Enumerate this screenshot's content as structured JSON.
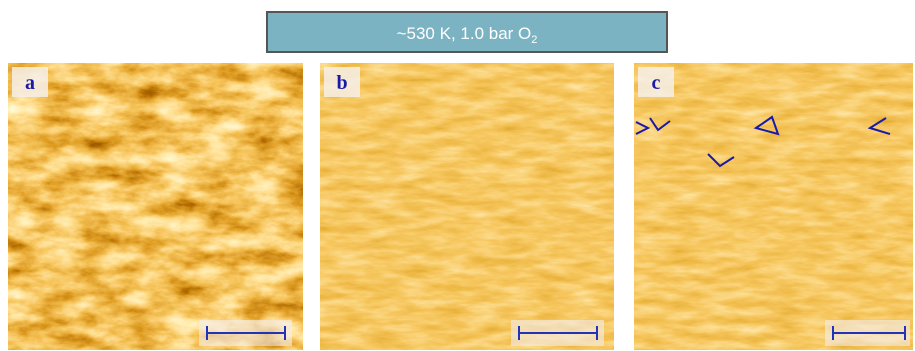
{
  "header": {
    "title": "~530 K, 1.0 bar O",
    "title_subscript": "2"
  },
  "panels": [
    {
      "label": "a"
    },
    {
      "label": "b"
    },
    {
      "label": "c"
    }
  ]
}
